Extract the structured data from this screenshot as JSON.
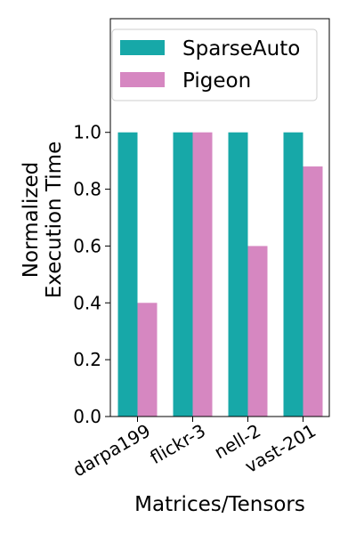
{
  "chart_data": {
    "type": "bar",
    "categories": [
      "darpa199",
      "flickr-3",
      "nell-2",
      "vast-201"
    ],
    "series": [
      {
        "name": "SparseAuto",
        "values": [
          1.0,
          1.0,
          1.0,
          1.0
        ],
        "color": "#17a8a8"
      },
      {
        "name": "Pigeon",
        "values": [
          0.4,
          1.0,
          0.6,
          0.88
        ],
        "color": "#d687c1"
      }
    ],
    "title": "",
    "xlabel": "Matrices/Tensors",
    "ylabel": [
      "Normalized",
      "Execution Time"
    ],
    "ylim": [
      0,
      1.4
    ],
    "yticks": [
      "0.0",
      "0.2",
      "0.4",
      "0.6",
      "0.8",
      "1.0"
    ],
    "grid": false,
    "legend": "top"
  }
}
